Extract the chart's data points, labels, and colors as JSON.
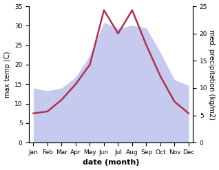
{
  "months": [
    "Jan",
    "Feb",
    "Mar",
    "Apr",
    "May",
    "Jun",
    "Jul",
    "Aug",
    "Sep",
    "Oct",
    "Nov",
    "Dec"
  ],
  "temp": [
    7.5,
    8.0,
    11.0,
    15.0,
    20.0,
    34.0,
    28.0,
    34.0,
    25.0,
    17.0,
    10.5,
    7.5
  ],
  "precip": [
    10.0,
    9.5,
    10.0,
    12.0,
    16.0,
    22.0,
    21.0,
    21.5,
    21.0,
    16.5,
    11.5,
    10.5
  ],
  "temp_color": "#b03050",
  "precip_fill_color": "#c5caee",
  "precip_fill_alpha": 1.0,
  "ylim_left": [
    0,
    35
  ],
  "ylim_right": [
    0,
    25
  ],
  "yticks_left": [
    0,
    5,
    10,
    15,
    20,
    25,
    30,
    35
  ],
  "yticks_right": [
    0,
    5,
    10,
    15,
    20,
    25
  ],
  "xlabel": "date (month)",
  "ylabel_left": "max temp (C)",
  "ylabel_right": "med. precipitation (kg/m2)",
  "bg_color": "#ffffff",
  "temp_linewidth": 1.8,
  "ylabel_fontsize": 7,
  "xlabel_fontsize": 8,
  "tick_fontsize": 6.5
}
